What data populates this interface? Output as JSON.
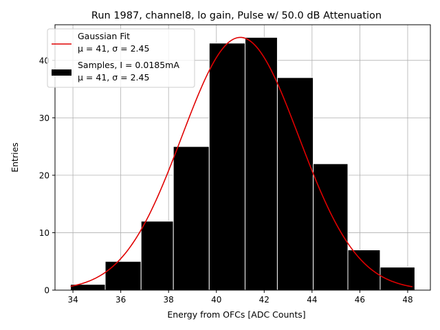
{
  "chart_data": {
    "type": "bar",
    "title": "Run 1987, channel8, lo gain, Pulse w/ 50.0 dB Attenuation",
    "xlabel": "Energy from OFCs [ADC Counts]",
    "ylabel": "Entries",
    "xlim": [
      33.25,
      48.95
    ],
    "ylim": [
      0,
      46.2
    ],
    "xticks": [
      34,
      36,
      38,
      40,
      42,
      44,
      46,
      48
    ],
    "yticks": [
      0,
      10,
      20,
      30,
      40
    ],
    "grid": true,
    "bins": [
      {
        "left": 33.9,
        "right": 35.35,
        "count": 1
      },
      {
        "left": 35.35,
        "right": 36.85,
        "count": 5
      },
      {
        "left": 36.85,
        "right": 38.2,
        "count": 12
      },
      {
        "left": 38.2,
        "right": 39.7,
        "count": 25
      },
      {
        "left": 39.7,
        "right": 41.2,
        "count": 43
      },
      {
        "left": 41.2,
        "right": 42.55,
        "count": 44
      },
      {
        "left": 42.55,
        "right": 44.05,
        "count": 37
      },
      {
        "left": 44.05,
        "right": 45.5,
        "count": 22
      },
      {
        "left": 45.5,
        "right": 46.85,
        "count": 7
      },
      {
        "left": 46.85,
        "right": 48.3,
        "count": 4
      }
    ],
    "fit": {
      "name": "Gaussian Fit",
      "mu": 41,
      "sigma": 2.45,
      "amplitude": 44,
      "x_range": [
        33.9,
        48.2
      ],
      "color": "#e00000"
    },
    "legend": {
      "position": "upper-left",
      "fit_label": "Gaussian Fit",
      "fit_params": "μ = 41, σ = 2.45",
      "samples_label": "Samples, I = 0.0185mA",
      "samples_params": "μ = 41, σ = 2.45"
    },
    "bar_color": "#000000"
  }
}
